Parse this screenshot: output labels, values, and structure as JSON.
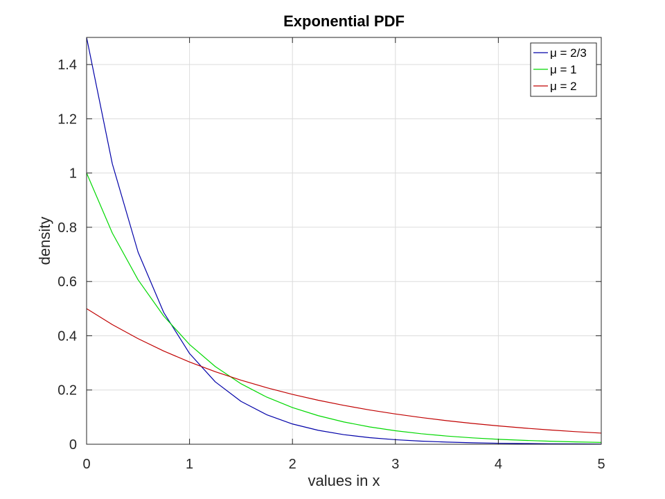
{
  "chart_data": {
    "type": "line",
    "title": "Exponential PDF",
    "xlabel": "values in x",
    "ylabel": "density",
    "xlim": [
      0,
      5
    ],
    "ylim": [
      0,
      1.5
    ],
    "xticks": [
      0,
      1,
      2,
      3,
      4,
      5
    ],
    "yticks": [
      0,
      0.2,
      0.4,
      0.6,
      0.8,
      1,
      1.2,
      1.4
    ],
    "xtick_labels": [
      "0",
      "1",
      "2",
      "3",
      "4",
      "5"
    ],
    "ytick_labels": [
      "0",
      "0.2",
      "0.4",
      "0.6",
      "0.8",
      "1",
      "1.2",
      "1.4"
    ],
    "grid": true,
    "legend_position": "top-right",
    "x": [
      0,
      0.25,
      0.5,
      0.75,
      1,
      1.25,
      1.5,
      1.75,
      2,
      2.25,
      2.5,
      2.75,
      3,
      3.25,
      3.5,
      3.75,
      4,
      4.25,
      4.5,
      4.75,
      5
    ],
    "series": [
      {
        "name": "μ = 2/3",
        "color": "#0000a8",
        "values": [
          1.5,
          1.034,
          0.7085,
          0.4853,
          0.3347,
          0.2302,
          0.1581,
          0.1089,
          0.0747,
          0.0514,
          0.0353,
          0.0243,
          0.0167,
          0.0115,
          0.0079,
          0.0054,
          0.0037,
          0.0026,
          0.0018,
          0.0012,
          0.0008
        ]
      },
      {
        "name": "μ = 1",
        "color": "#00d800",
        "values": [
          1.0,
          0.7788,
          0.6065,
          0.4724,
          0.3679,
          0.2865,
          0.2231,
          0.1738,
          0.1353,
          0.1054,
          0.0821,
          0.0639,
          0.0498,
          0.0388,
          0.0302,
          0.0235,
          0.0183,
          0.0143,
          0.0111,
          0.0087,
          0.0067
        ]
      },
      {
        "name": "μ = 2",
        "color": "#c00000",
        "values": [
          0.5,
          0.4412,
          0.3894,
          0.3436,
          0.3033,
          0.2676,
          0.2362,
          0.2084,
          0.1839,
          0.1623,
          0.1433,
          0.1264,
          0.1116,
          0.0985,
          0.0869,
          0.0767,
          0.0677,
          0.0597,
          0.0527,
          0.0465,
          0.041
        ]
      }
    ]
  }
}
